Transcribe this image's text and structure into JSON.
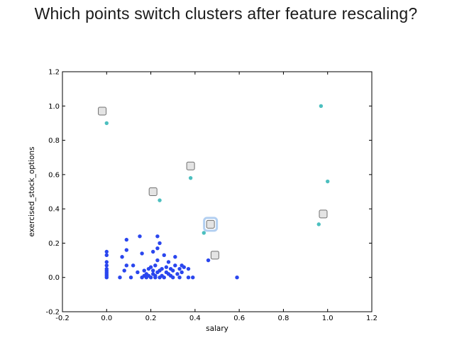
{
  "question": "Which points switch clusters after feature rescaling?",
  "colors": {
    "cluster_a": "#2a46ee",
    "cluster_b": "#4cbfbf",
    "marker_fill": "#e4e4e4",
    "marker_stroke": "#707070",
    "highlight": "#9fc3ee"
  },
  "chart_data": {
    "type": "scatter",
    "xlabel": "salary",
    "ylabel": "exercised_stock_options",
    "xlim": [
      -0.2,
      1.2
    ],
    "ylim": [
      -0.2,
      1.2
    ],
    "xticks": [
      "-0.2",
      "0.0",
      "0.2",
      "0.4",
      "0.6",
      "0.8",
      "1.0",
      "1.2"
    ],
    "yticks": [
      "-0.2",
      "0.0",
      "0.2",
      "0.4",
      "0.6",
      "0.8",
      "1.0",
      "1.2"
    ],
    "grid": false,
    "series": [
      {
        "color": "#2a46ee",
        "points": [
          [
            0.0,
            0.15
          ],
          [
            0.0,
            0.13
          ],
          [
            0.0,
            0.09
          ],
          [
            0.0,
            0.07
          ],
          [
            0.0,
            0.05
          ],
          [
            0.0,
            0.04
          ],
          [
            0.0,
            0.03
          ],
          [
            0.0,
            0.02
          ],
          [
            0.0,
            0.01
          ],
          [
            0.0,
            0.0
          ],
          [
            0.06,
            0.0
          ],
          [
            0.08,
            0.04
          ],
          [
            0.09,
            0.07
          ],
          [
            0.07,
            0.12
          ],
          [
            0.09,
            0.16
          ],
          [
            0.09,
            0.22
          ],
          [
            0.11,
            0.0
          ],
          [
            0.12,
            0.07
          ],
          [
            0.14,
            0.03
          ],
          [
            0.15,
            0.24
          ],
          [
            0.16,
            0.14
          ],
          [
            0.16,
            0.0
          ],
          [
            0.17,
            0.01
          ],
          [
            0.17,
            0.04
          ],
          [
            0.18,
            0.0
          ],
          [
            0.18,
            0.02
          ],
          [
            0.19,
            0.01
          ],
          [
            0.19,
            0.05
          ],
          [
            0.2,
            0.0
          ],
          [
            0.2,
            0.06
          ],
          [
            0.21,
            0.02
          ],
          [
            0.21,
            0.04
          ],
          [
            0.21,
            0.15
          ],
          [
            0.22,
            0.01
          ],
          [
            0.22,
            0.0
          ],
          [
            0.22,
            0.07
          ],
          [
            0.23,
            0.03
          ],
          [
            0.23,
            0.1
          ],
          [
            0.23,
            0.17
          ],
          [
            0.23,
            0.24
          ],
          [
            0.24,
            0.0
          ],
          [
            0.24,
            0.04
          ],
          [
            0.24,
            0.2
          ],
          [
            0.25,
            0.05
          ],
          [
            0.25,
            0.01
          ],
          [
            0.26,
            0.13
          ],
          [
            0.26,
            0.0
          ],
          [
            0.27,
            0.03
          ],
          [
            0.27,
            0.06
          ],
          [
            0.28,
            0.02
          ],
          [
            0.28,
            0.09
          ],
          [
            0.29,
            0.01
          ],
          [
            0.29,
            0.05
          ],
          [
            0.3,
            0.04
          ],
          [
            0.3,
            0.0
          ],
          [
            0.31,
            0.07
          ],
          [
            0.31,
            0.12
          ],
          [
            0.32,
            0.02
          ],
          [
            0.33,
            0.05
          ],
          [
            0.33,
            0.0
          ],
          [
            0.34,
            0.07
          ],
          [
            0.34,
            0.03
          ],
          [
            0.35,
            0.06
          ],
          [
            0.37,
            0.05
          ],
          [
            0.37,
            0.0
          ],
          [
            0.39,
            0.0
          ],
          [
            0.46,
            0.1
          ],
          [
            0.59,
            0.0
          ]
        ]
      },
      {
        "color": "#4cbfbf",
        "points": [
          [
            0.0,
            0.9
          ],
          [
            0.24,
            0.45
          ],
          [
            0.38,
            0.58
          ],
          [
            0.44,
            0.26
          ],
          [
            0.96,
            0.31
          ],
          [
            0.97,
            1.0
          ],
          [
            1.0,
            0.56
          ]
        ]
      }
    ],
    "markers": [
      {
        "x": -0.02,
        "y": 0.97,
        "highlight": false
      },
      {
        "x": 0.21,
        "y": 0.5,
        "highlight": false
      },
      {
        "x": 0.38,
        "y": 0.65,
        "highlight": false
      },
      {
        "x": 0.47,
        "y": 0.31,
        "highlight": true
      },
      {
        "x": 0.49,
        "y": 0.13,
        "highlight": false
      },
      {
        "x": 0.98,
        "y": 0.37,
        "highlight": false
      }
    ]
  }
}
